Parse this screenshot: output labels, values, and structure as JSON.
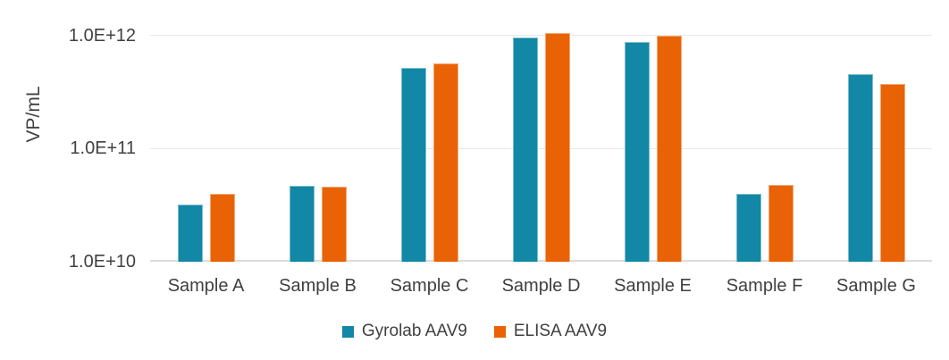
{
  "chart_data": {
    "type": "bar",
    "title": "",
    "ylabel": "VP/mL",
    "xlabel": "",
    "scale": "log",
    "ylim": [
      10000000000.0,
      1600000000000.0
    ],
    "grid": true,
    "legend_position": "bottom-center",
    "categories": [
      "Sample A",
      "Sample B",
      "Sample C",
      "Sample D",
      "Sample E",
      "Sample F",
      "Sample G"
    ],
    "yticks": [
      {
        "label": "1.0E+10",
        "value": 10000000000.0
      },
      {
        "label": "1.0E+11",
        "value": 100000000000.0
      },
      {
        "label": "1.0E+12",
        "value": 1000000000000.0
      }
    ],
    "series": [
      {
        "name": "Gyrolab AAV9",
        "color": "#1287A6",
        "values": [
          32000000000.0,
          47000000000.0,
          520000000000.0,
          970000000000.0,
          880000000000.0,
          40000000000.0,
          460000000000.0
        ]
      },
      {
        "name": "ELISA AAV9",
        "color": "#E96206",
        "values": [
          40000000000.0,
          46000000000.0,
          570000000000.0,
          1050000000000.0,
          990000000000.0,
          48000000000.0,
          370000000000.0
        ]
      }
    ]
  }
}
